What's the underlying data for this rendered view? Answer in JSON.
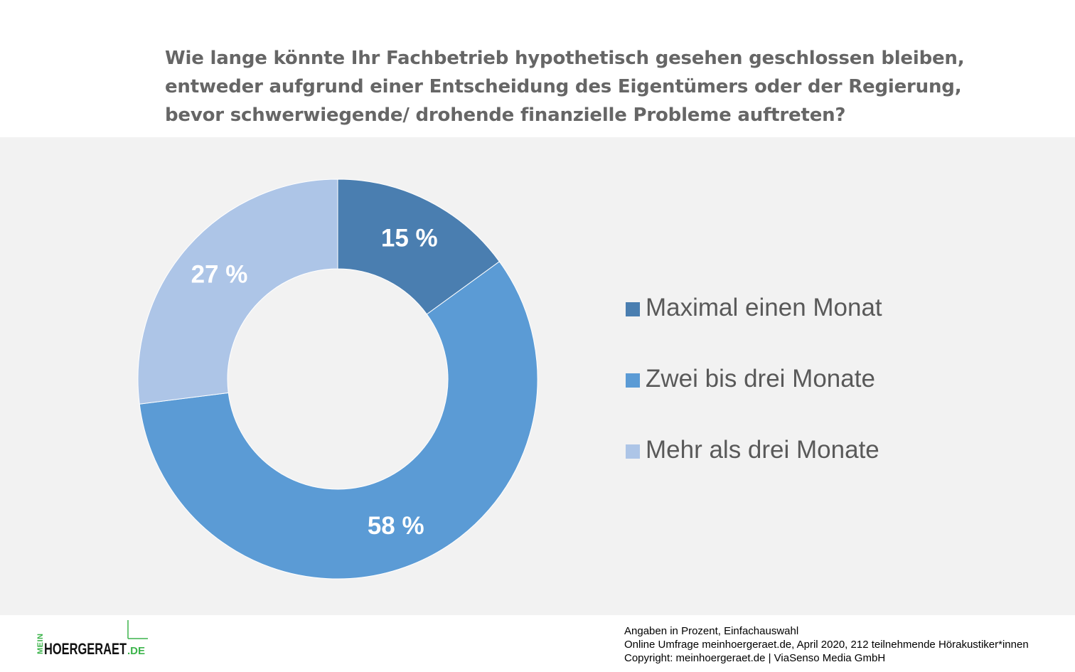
{
  "title_lines": [
    "Wie lange könnte Ihr Fachbetrieb hypothetisch gesehen geschlossen bleiben,",
    "entweder aufgrund einer Entscheidung des Eigentümers oder der Regierung,",
    "bevor schwerwiegende/ drohende finanzielle Probleme auftreten?"
  ],
  "chart_data": {
    "type": "pie",
    "donut": true,
    "legend_position": "right",
    "categories": [
      "Maximal einen Monat",
      "Zwei bis drei Monate",
      "Mehr als drei Monate"
    ],
    "values": [
      15,
      58,
      27
    ],
    "data_labels": [
      "15 %",
      "58 %",
      "27 %"
    ],
    "colors": [
      "#4a7eb0",
      "#5b9bd5",
      "#adc5e7"
    ]
  },
  "logo": {
    "prefix": "MEIN",
    "name": "HOERGERAET",
    "suffix": ".DE"
  },
  "footer": {
    "lines": [
      "Angaben in Prozent, Einfachauswahl",
      "Online Umfrage meinhoergeraet.de, April 2020, 212 teilnehmende Hörakustiker*innen",
      "Copyright: meinhoergeraet.de | ViaSenso Media GmbH"
    ]
  }
}
